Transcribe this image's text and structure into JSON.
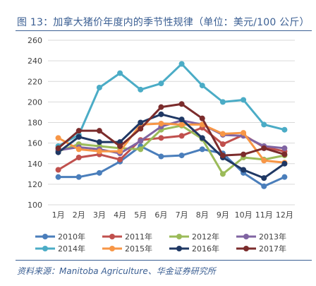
{
  "title": "图 13：加拿大猪价年度内的季节性规律（单位：美元/100 公斤）",
  "source": "资料来源：Manitoba Agriculture、华金证券研究所",
  "chart_data": {
    "type": "line",
    "title": "图 13：加拿大猪价年度内的季节性规律（单位：美元/100 公斤）",
    "xlabel": "",
    "ylabel": "",
    "categories": [
      "1月",
      "2月",
      "3月",
      "4月",
      "5月",
      "6月",
      "7月",
      "8月",
      "9月",
      "10月",
      "11月",
      "12月"
    ],
    "ylim": [
      100,
      260
    ],
    "yticks": [
      100,
      120,
      140,
      160,
      180,
      200,
      220,
      240,
      260
    ],
    "grid": true,
    "legend": "bottom",
    "series": [
      {
        "name": "2010年",
        "color": "#4a7ebb",
        "values": [
          127,
          127,
          131,
          142,
          157,
          147,
          148,
          154,
          150,
          131,
          118,
          127
        ]
      },
      {
        "name": "2011年",
        "color": "#c0504d",
        "values": [
          134,
          146,
          149,
          144,
          163,
          165,
          167,
          175,
          159,
          168,
          156,
          152
        ]
      },
      {
        "name": "2012年",
        "color": "#9bbb59",
        "values": [
          152,
          159,
          157,
          155,
          154,
          173,
          177,
          164,
          130,
          146,
          144,
          148
        ]
      },
      {
        "name": "2013年",
        "color": "#8064a2",
        "values": [
          153,
          156,
          154,
          150,
          162,
          176,
          182,
          178,
          168,
          167,
          157,
          155
        ]
      },
      {
        "name": "2014年",
        "color": "#4bacc6",
        "values": [
          157,
          168,
          214,
          228,
          212,
          218,
          237,
          216,
          200,
          202,
          178,
          173
        ]
      },
      {
        "name": "2015年",
        "color": "#f79646",
        "values": [
          165,
          154,
          152,
          152,
          178,
          179,
          178,
          178,
          169,
          170,
          143,
          141
        ]
      },
      {
        "name": "2016年",
        "color": "#1f3864",
        "values": [
          151,
          166,
          161,
          161,
          180,
          188,
          183,
          165,
          146,
          134,
          126,
          140
        ]
      },
      {
        "name": "2017年",
        "color": "#7b2c2c",
        "values": [
          155,
          172,
          172,
          157,
          174,
          195,
          198,
          184,
          148,
          149,
          155,
          149
        ]
      }
    ]
  }
}
